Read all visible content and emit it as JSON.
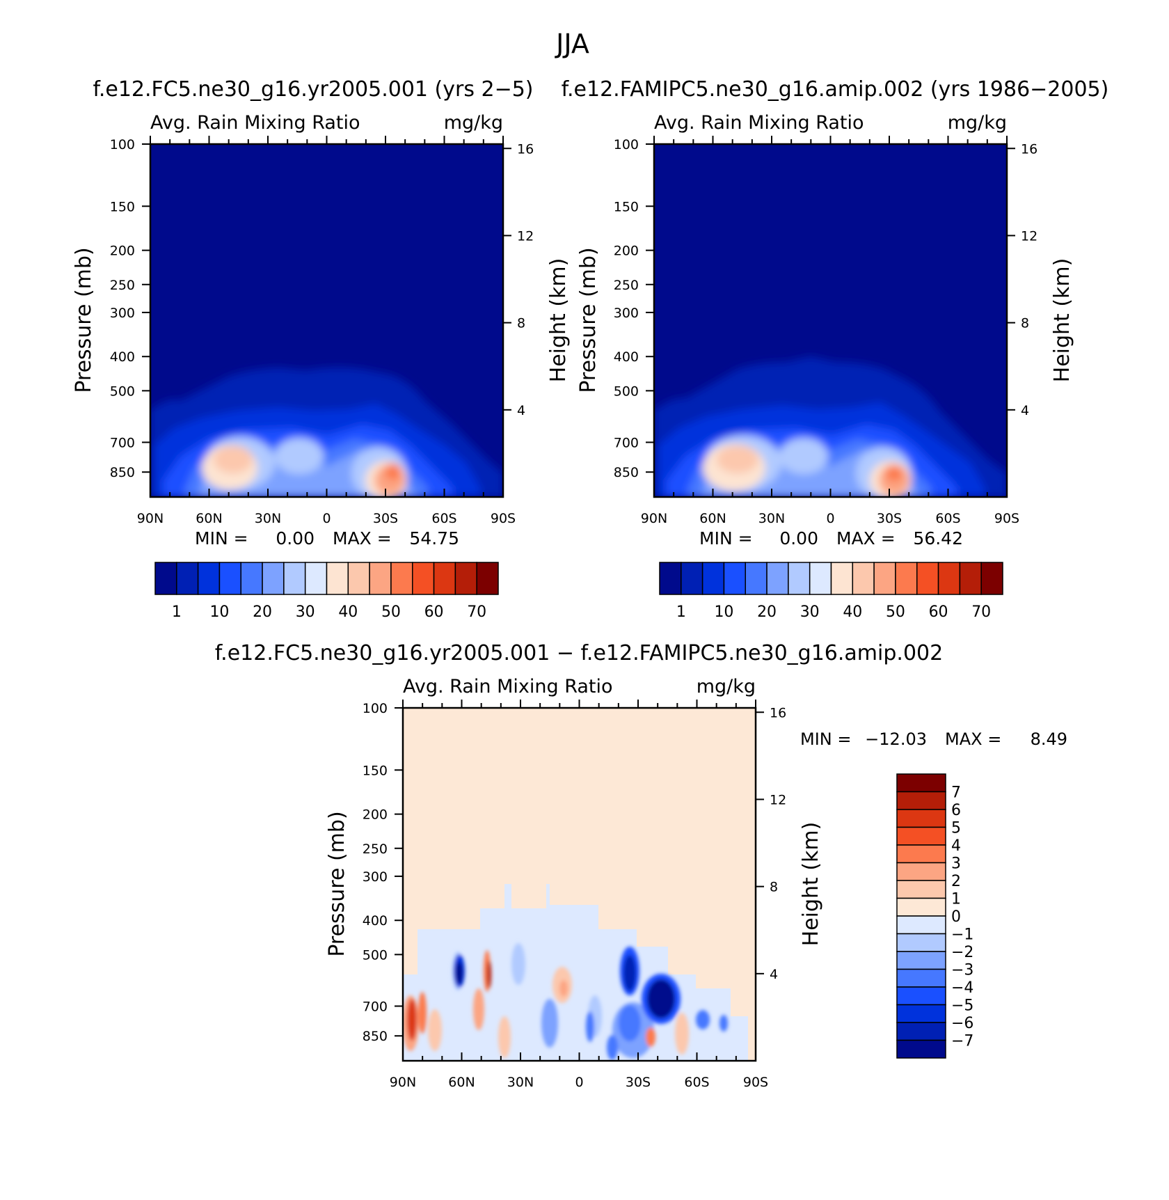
{
  "figure_title": "JJA",
  "chart_data": [
    {
      "type": "heatmap",
      "title": "f.e12.FC5.ne30_g16.yr2005.001 (yrs 2-5)",
      "variable": "Avg. Rain Mixing Ratio",
      "units": "mg/kg",
      "ylabel": "Pressure (mb)",
      "ylabel_right": "Height (km)",
      "xticks": [
        "90N",
        "60N",
        "30N",
        "0",
        "30S",
        "60S",
        "90S"
      ],
      "yticks": [
        100,
        150,
        200,
        250,
        300,
        400,
        500,
        700,
        850
      ],
      "yticks_right": [
        16,
        12,
        8,
        4
      ],
      "min_label": "MIN =",
      "min": "0.00",
      "max_label": "MAX =",
      "max": "54.75",
      "colorbar_labels": [
        "1",
        "10",
        "20",
        "30",
        "40",
        "50",
        "60",
        "70"
      ],
      "colorbar_colors": [
        "#000a8c",
        "#0020b4",
        "#0032dc",
        "#1a50ff",
        "#4678ff",
        "#7da2ff",
        "#b1caff",
        "#dde9ff",
        "#fde4d2",
        "#fcc8ad",
        "#fca583",
        "#fc7a4e",
        "#f45024",
        "#dc3712",
        "#b41e08",
        "#7c0000"
      ]
    },
    {
      "type": "heatmap",
      "title": "f.e12.FAMIPC5.ne30_g16.amip.002 (yrs 1986-2005)",
      "variable": "Avg. Rain Mixing Ratio",
      "units": "mg/kg",
      "ylabel": "Pressure (mb)",
      "ylabel_right": "Height (km)",
      "xticks": [
        "90N",
        "60N",
        "30N",
        "0",
        "30S",
        "60S",
        "90S"
      ],
      "yticks": [
        100,
        150,
        200,
        250,
        300,
        400,
        500,
        700,
        850
      ],
      "yticks_right": [
        16,
        12,
        8,
        4
      ],
      "min_label": "MIN =",
      "min": "0.00",
      "max_label": "MAX =",
      "max": "56.42",
      "colorbar_labels": [
        "1",
        "10",
        "20",
        "30",
        "40",
        "50",
        "60",
        "70"
      ],
      "colorbar_colors": [
        "#000a8c",
        "#0020b4",
        "#0032dc",
        "#1a50ff",
        "#4678ff",
        "#7da2ff",
        "#b1caff",
        "#dde9ff",
        "#fde4d2",
        "#fcc8ad",
        "#fca583",
        "#fc7a4e",
        "#f45024",
        "#dc3712",
        "#b41e08",
        "#7c0000"
      ]
    },
    {
      "type": "heatmap",
      "title": "f.e12.FC5.ne30_g16.yr2005.001 - f.e12.FAMIPC5.ne30_g16.amip.002",
      "variable": "Avg. Rain Mixing Ratio",
      "units": "mg/kg",
      "ylabel": "Pressure (mb)",
      "ylabel_right": "Height (km)",
      "xticks": [
        "90N",
        "60N",
        "30N",
        "0",
        "30S",
        "60S",
        "90S"
      ],
      "yticks": [
        100,
        150,
        200,
        250,
        300,
        400,
        500,
        700,
        850
      ],
      "yticks_right": [
        16,
        12,
        8,
        4
      ],
      "min_label": "MIN =",
      "min": "-12.03",
      "max_label": "MAX =",
      "max": "8.49",
      "colorbar_labels": [
        "7",
        "6",
        "5",
        "4",
        "3",
        "2",
        "1",
        "0",
        "-1",
        "-2",
        "-3",
        "-4",
        "-5",
        "-6",
        "-7"
      ],
      "colorbar_colors": [
        "#7c0000",
        "#b41e08",
        "#dc3712",
        "#f45024",
        "#fc7a4e",
        "#fca583",
        "#fcc8ad",
        "#fde8d6",
        "#dde9ff",
        "#b1caff",
        "#7da2ff",
        "#4678ff",
        "#1a50ff",
        "#0032dc",
        "#0020b4",
        "#000a8c"
      ]
    }
  ]
}
